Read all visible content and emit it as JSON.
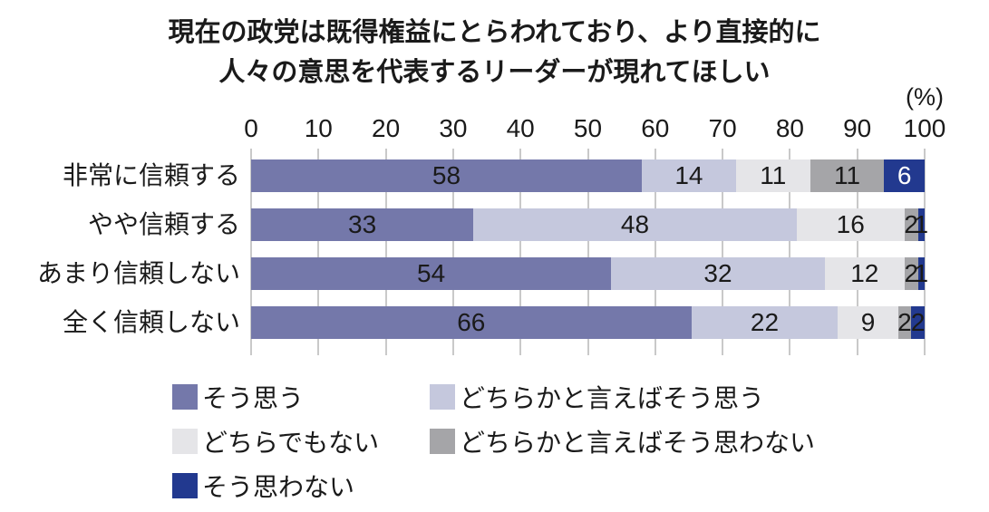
{
  "title": {
    "line1": "現在の政党は既得権益にとらわれており、より直接的に",
    "line2": "人々の意思を代表するリーダーが現れてほしい"
  },
  "axis": {
    "unit_label": "(%)",
    "min": 0,
    "max": 100,
    "ticks": [
      0,
      10,
      20,
      30,
      40,
      50,
      60,
      70,
      80,
      90,
      100
    ]
  },
  "chart_data": {
    "type": "bar",
    "variant": "horizontal-stacked-100-percent",
    "title": "現在の政党は既得権益にとらわれており、より直接的に人々の意思を代表するリーダーが現れてほしい",
    "unit": "%",
    "categories": [
      "非常に信頼する",
      "やや信頼する",
      "あまり信頼しない",
      "全く信頼しない"
    ],
    "series": [
      {
        "name": "そう思う",
        "color": "#7478aa",
        "values": [
          58,
          33,
          54,
          66
        ]
      },
      {
        "name": "どちらかと言えばそう思う",
        "color": "#c5c8dd",
        "values": [
          14,
          48,
          32,
          22
        ]
      },
      {
        "name": "どちらでもない",
        "color": "#e5e5e8",
        "values": [
          11,
          16,
          12,
          9
        ]
      },
      {
        "name": "どちらかと言えばそう思わない",
        "color": "#a5a5a8",
        "values": [
          11,
          2,
          2,
          2
        ]
      },
      {
        "name": "そう思わない",
        "color": "#22398f",
        "label_color": "#ffffff",
        "values": [
          6,
          1,
          1,
          2
        ]
      }
    ],
    "xlim": [
      0,
      100
    ],
    "grid": true,
    "legend_position": "bottom"
  },
  "colors": {
    "text": "#1a1a1a",
    "gridline": "#c9c9c9",
    "background": "#ffffff"
  }
}
